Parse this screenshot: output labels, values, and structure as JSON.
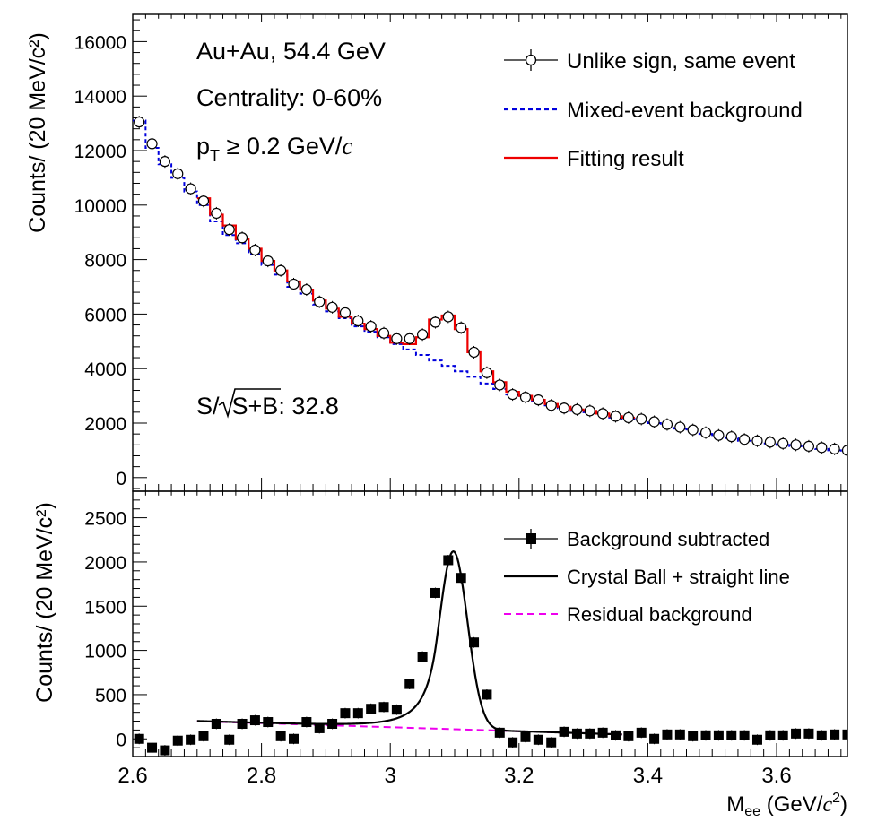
{
  "chart_data": [
    {
      "type": "scatter",
      "panel": "top",
      "ylabel": "Counts/ (20 MeV/c²)",
      "ylim": [
        -500,
        17000
      ],
      "y_ticks": [
        0,
        2000,
        4000,
        6000,
        8000,
        10000,
        12000,
        14000,
        16000
      ],
      "y_tick_labels": [
        "0",
        "2000",
        "4000",
        "6000",
        "8000",
        "10000",
        "12000",
        "14000",
        "16000"
      ],
      "xlim": [
        2.6,
        3.71
      ],
      "annotations": {
        "system": "Au+Au, 54.4 GeV",
        "centrality": "Centrality: 0-60%",
        "pt_p": "p",
        "pt_sub": "T",
        "pt_rest": " ≥ 0.2 GeV/",
        "pt_c": "c",
        "signif_prefix": "S/",
        "signif_radicand": "S+B",
        "signif_value": ": 32.8"
      },
      "legend": {
        "position": "top-right",
        "entries": [
          "Unlike sign, same event",
          "Mixed-event background",
          "Fitting result"
        ]
      },
      "series": [
        {
          "name": "Unlike sign, same event",
          "style": "open-circle",
          "x": [
            2.61,
            2.63,
            2.65,
            2.67,
            2.69,
            2.71,
            2.73,
            2.75,
            2.77,
            2.79,
            2.81,
            2.83,
            2.85,
            2.87,
            2.89,
            2.91,
            2.93,
            2.95,
            2.97,
            2.99,
            3.01,
            3.03,
            3.05,
            3.07,
            3.09,
            3.11,
            3.13,
            3.15,
            3.17,
            3.19,
            3.21,
            3.23,
            3.25,
            3.27,
            3.29,
            3.31,
            3.33,
            3.35,
            3.37,
            3.39,
            3.41,
            3.43,
            3.45,
            3.47,
            3.49,
            3.51,
            3.53,
            3.55,
            3.57,
            3.59,
            3.61,
            3.63,
            3.65,
            3.67,
            3.69,
            3.71
          ],
          "y": [
            13050,
            12250,
            11600,
            11150,
            10600,
            10150,
            9700,
            9100,
            8800,
            8350,
            7950,
            7600,
            7100,
            6900,
            6450,
            6250,
            6050,
            5750,
            5550,
            5300,
            5100,
            5100,
            5250,
            5700,
            5900,
            5500,
            4600,
            3850,
            3400,
            3050,
            2950,
            2850,
            2650,
            2550,
            2500,
            2450,
            2350,
            2250,
            2200,
            2150,
            2050,
            1950,
            1850,
            1750,
            1650,
            1550,
            1500,
            1400,
            1350,
            1300,
            1250,
            1200,
            1150,
            1100,
            1050,
            1000
          ]
        },
        {
          "name": "Mixed-event background",
          "style": "dashed-step",
          "color": "#0000dd",
          "edges": [
            2.6,
            2.62,
            2.64,
            2.66,
            2.68,
            2.7,
            2.72,
            2.74,
            2.76,
            2.78,
            2.8,
            2.82,
            2.84,
            2.86,
            2.88,
            2.9,
            2.92,
            2.94,
            2.96,
            2.98,
            3.0,
            3.02,
            3.04,
            3.06,
            3.08,
            3.1,
            3.12,
            3.14,
            3.16,
            3.18,
            3.2,
            3.22,
            3.24,
            3.26,
            3.28,
            3.3,
            3.32,
            3.34,
            3.36,
            3.38,
            3.4,
            3.42,
            3.44,
            3.46,
            3.48,
            3.5,
            3.52,
            3.54,
            3.56,
            3.58,
            3.6,
            3.62,
            3.64,
            3.66,
            3.68,
            3.7,
            3.71
          ],
          "values": [
            13100,
            12100,
            11500,
            11000,
            10500,
            10000,
            9400,
            8900,
            8600,
            8200,
            7800,
            7450,
            7000,
            6750,
            6350,
            6100,
            5850,
            5550,
            5350,
            5150,
            4900,
            4700,
            4500,
            4300,
            4100,
            3900,
            3700,
            3450,
            3250,
            3050,
            2950,
            2800,
            2650,
            2550,
            2450,
            2400,
            2300,
            2200,
            2150,
            2100,
            2000,
            1900,
            1800,
            1700,
            1600,
            1500,
            1450,
            1350,
            1300,
            1250,
            1200,
            1150,
            1100,
            1050,
            1000,
            950
          ]
        },
        {
          "name": "Fitting result",
          "style": "solid-step",
          "color": "#ee0000",
          "edges": [
            2.7,
            2.72,
            2.74,
            2.76,
            2.78,
            2.8,
            2.82,
            2.84,
            2.86,
            2.88,
            2.9,
            2.92,
            2.94,
            2.96,
            2.98,
            3.0,
            3.02,
            3.04,
            3.06,
            3.08,
            3.1,
            3.12,
            3.14,
            3.16,
            3.18,
            3.2,
            3.22,
            3.24,
            3.26,
            3.28,
            3.3,
            3.32,
            3.34,
            3.36,
            3.38
          ],
          "values": [
            10250,
            9650,
            9250,
            8750,
            8400,
            7950,
            7600,
            7200,
            6900,
            6500,
            6200,
            5900,
            5650,
            5450,
            5200,
            4950,
            4900,
            5150,
            5800,
            5950,
            5450,
            4600,
            3900,
            3500,
            3150,
            3000,
            2850,
            2700,
            2600,
            2500,
            2450,
            2350,
            2250,
            2200
          ]
        }
      ]
    },
    {
      "type": "scatter",
      "panel": "bottom",
      "xlabel_main": "M",
      "xlabel_sub": "ee",
      "xlabel_rest": " (GeV/",
      "xlabel_c": "c",
      "xlabel_sup": "2",
      "xlabel_close": ")",
      "ylabel": "Counts/ (20 MeV/c²)",
      "xlim": [
        2.6,
        3.71
      ],
      "ylim": [
        -200,
        2800
      ],
      "x_ticks": [
        2.6,
        2.8,
        3.0,
        3.2,
        3.4,
        3.6
      ],
      "x_tick_labels": [
        "2.6",
        "2.8",
        "3",
        "3.2",
        "3.4",
        "3.6"
      ],
      "y_ticks": [
        0,
        500,
        1000,
        1500,
        2000,
        2500
      ],
      "y_tick_labels": [
        "0",
        "500",
        "1000",
        "1500",
        "2000",
        "2500"
      ],
      "legend": {
        "position": "top-right",
        "entries": [
          "Background subtracted",
          "Crystal Ball + straight line",
          "Residual background"
        ]
      },
      "series": [
        {
          "name": "Background subtracted",
          "style": "filled-square",
          "x": [
            2.61,
            2.63,
            2.65,
            2.67,
            2.69,
            2.71,
            2.73,
            2.75,
            2.77,
            2.79,
            2.81,
            2.83,
            2.85,
            2.87,
            2.89,
            2.91,
            2.93,
            2.95,
            2.97,
            2.99,
            3.01,
            3.03,
            3.05,
            3.07,
            3.09,
            3.11,
            3.13,
            3.15,
            3.17,
            3.19,
            3.21,
            3.23,
            3.25,
            3.27,
            3.29,
            3.31,
            3.33,
            3.35,
            3.37,
            3.39,
            3.41,
            3.43,
            3.45,
            3.47,
            3.49,
            3.51,
            3.53,
            3.55,
            3.57,
            3.59,
            3.61,
            3.63,
            3.65,
            3.67,
            3.69,
            3.71
          ],
          "y": [
            0,
            -100,
            -130,
            -20,
            -10,
            30,
            170,
            -10,
            170,
            210,
            190,
            30,
            0,
            190,
            120,
            170,
            290,
            290,
            340,
            360,
            330,
            620,
            930,
            1650,
            2020,
            1820,
            1090,
            500,
            70,
            -40,
            20,
            -10,
            -40,
            80,
            60,
            60,
            70,
            40,
            30,
            70,
            0,
            50,
            50,
            30,
            40,
            40,
            40,
            40,
            -10,
            40,
            40,
            60,
            60,
            40,
            50,
            50
          ],
          "y_err": [
            60,
            60,
            60,
            60,
            60,
            60,
            60,
            60,
            60,
            60,
            60,
            60,
            60,
            60,
            60,
            60,
            60,
            60,
            60,
            60,
            60,
            60,
            60,
            60,
            60,
            60,
            60,
            60,
            60,
            60,
            60,
            60,
            60,
            60,
            60,
            60,
            60,
            60,
            60,
            60,
            60,
            60,
            60,
            60,
            60,
            60,
            60,
            60,
            60,
            60,
            60,
            60,
            60,
            60,
            60,
            60
          ]
        },
        {
          "name": "Crystal Ball + straight line",
          "style": "solid-line",
          "color": "#000000",
          "fit_range": [
            2.7,
            3.36
          ],
          "peak_mean": 3.098,
          "peak_sigma": 0.022,
          "peak_amplitude": 2010,
          "tail_alpha": 1.2,
          "tail_n": 3.0,
          "line_at_2_7": 200,
          "line_slope": -227
        },
        {
          "name": "Residual background",
          "style": "dashed-line",
          "color": "#ee00ee",
          "x": [
            2.7,
            3.36
          ],
          "y": [
            200,
            50
          ]
        }
      ]
    }
  ]
}
